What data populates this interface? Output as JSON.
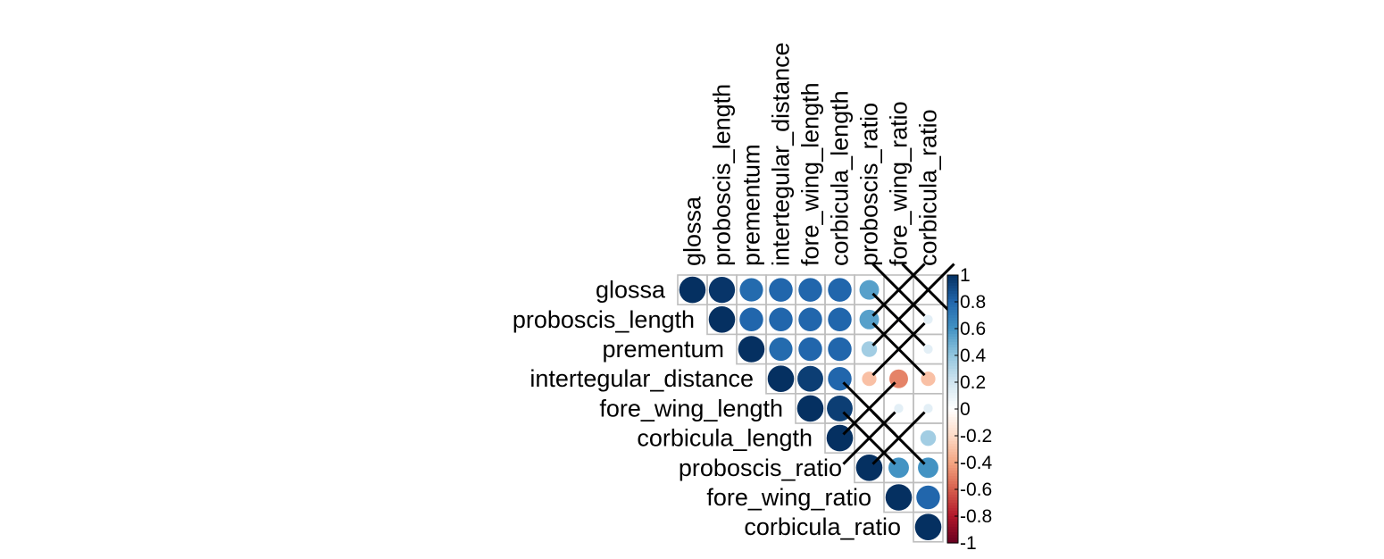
{
  "chart_data": {
    "type": "heatmap",
    "variables": [
      "glossa",
      "proboscis_length",
      "prementum",
      "intertegular_distance",
      "fore_wing_length",
      "corbicula_length",
      "proboscis_ratio",
      "fore_wing_ratio",
      "corbicula_ratio"
    ],
    "cells": [
      {
        "row": 0,
        "col": 0,
        "value": 1.0
      },
      {
        "row": 0,
        "col": 1,
        "value": 0.98
      },
      {
        "row": 0,
        "col": 2,
        "value": 0.78
      },
      {
        "row": 0,
        "col": 3,
        "value": 0.8
      },
      {
        "row": 0,
        "col": 4,
        "value": 0.8
      },
      {
        "row": 0,
        "col": 5,
        "value": 0.8
      },
      {
        "row": 0,
        "col": 6,
        "value": 0.55
      },
      {
        "row": 0,
        "col": 7,
        "value": 0.05,
        "insignificant": true
      },
      {
        "row": 0,
        "col": 8,
        "value": 0.05,
        "insignificant": true
      },
      {
        "row": 1,
        "col": 1,
        "value": 1.0
      },
      {
        "row": 1,
        "col": 2,
        "value": 0.8
      },
      {
        "row": 1,
        "col": 3,
        "value": 0.8
      },
      {
        "row": 1,
        "col": 4,
        "value": 0.8
      },
      {
        "row": 1,
        "col": 5,
        "value": 0.8
      },
      {
        "row": 1,
        "col": 6,
        "value": 0.55
      },
      {
        "row": 1,
        "col": 7,
        "value": 0.05,
        "insignificant": true
      },
      {
        "row": 1,
        "col": 8,
        "value": 0.12
      },
      {
        "row": 2,
        "col": 2,
        "value": 1.0
      },
      {
        "row": 2,
        "col": 3,
        "value": 0.78
      },
      {
        "row": 2,
        "col": 4,
        "value": 0.8
      },
      {
        "row": 2,
        "col": 5,
        "value": 0.8
      },
      {
        "row": 2,
        "col": 6,
        "value": 0.35
      },
      {
        "row": 2,
        "col": 7,
        "value": 0.05,
        "insignificant": true
      },
      {
        "row": 2,
        "col": 8,
        "value": 0.12
      },
      {
        "row": 3,
        "col": 3,
        "value": 1.0
      },
      {
        "row": 3,
        "col": 4,
        "value": 0.95
      },
      {
        "row": 3,
        "col": 5,
        "value": 0.8
      },
      {
        "row": 3,
        "col": 6,
        "value": -0.3
      },
      {
        "row": 3,
        "col": 7,
        "value": -0.5
      },
      {
        "row": 3,
        "col": 8,
        "value": -0.3
      },
      {
        "row": 4,
        "col": 4,
        "value": 1.0
      },
      {
        "row": 4,
        "col": 5,
        "value": 0.95
      },
      {
        "row": 4,
        "col": 6,
        "value": 0.05,
        "insignificant": true
      },
      {
        "row": 4,
        "col": 7,
        "value": 0.12
      },
      {
        "row": 4,
        "col": 8,
        "value": 0.12
      },
      {
        "row": 5,
        "col": 5,
        "value": 1.0
      },
      {
        "row": 5,
        "col": 6,
        "value": 0.05,
        "insignificant": true
      },
      {
        "row": 5,
        "col": 7,
        "value": 0.05,
        "insignificant": true
      },
      {
        "row": 5,
        "col": 8,
        "value": 0.35
      },
      {
        "row": 6,
        "col": 6,
        "value": 1.0
      },
      {
        "row": 6,
        "col": 7,
        "value": 0.6
      },
      {
        "row": 6,
        "col": 8,
        "value": 0.6
      },
      {
        "row": 7,
        "col": 7,
        "value": 1.0
      },
      {
        "row": 7,
        "col": 8,
        "value": 0.8
      },
      {
        "row": 8,
        "col": 8,
        "value": 1.0
      }
    ],
    "colorbar_ticks": [
      "1",
      "0.8",
      "0.6",
      "0.4",
      "0.2",
      "0",
      "-0.2",
      "-0.4",
      "-0.6",
      "-0.8",
      "-1"
    ],
    "value_range": [
      -1,
      1
    ],
    "colors": {
      "strong_negative": "#67001F",
      "negative": "#D6604D",
      "neutral": "#FFFFFF",
      "positive": "#4393C3",
      "strong_positive": "#053061",
      "grid": "#BEBEBE",
      "cross": "#000000"
    }
  }
}
